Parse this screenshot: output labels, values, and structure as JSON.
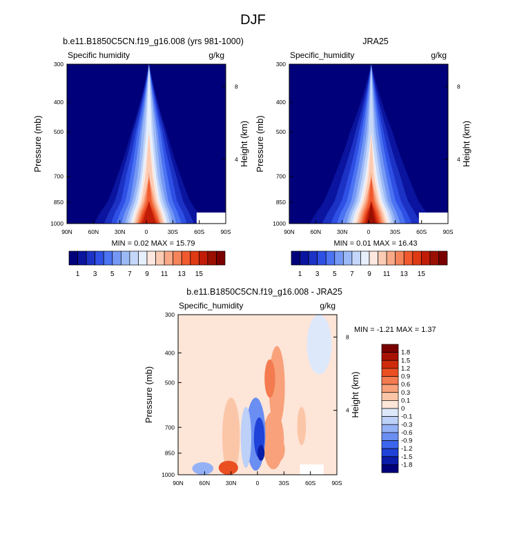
{
  "figure": {
    "title": "DJF"
  },
  "colors": {
    "abs_levels": [
      "#00007a",
      "#0a149e",
      "#1c32c4",
      "#2f50e4",
      "#4b73f2",
      "#7598f4",
      "#9bb9f6",
      "#c4d6f9",
      "#e6effc",
      "#fde7de",
      "#fbcbb4",
      "#f8a987",
      "#f5845b",
      "#f05a2e",
      "#de3a14",
      "#c01c08",
      "#991002",
      "#7a0000"
    ],
    "diff_levels": [
      "#00007a",
      "#0a1ca8",
      "#1f42d8",
      "#3d66ee",
      "#6a8ef2",
      "#95b1f5",
      "#bcd0f8",
      "#dde8fb",
      "#fde5d8",
      "#fbc6a8",
      "#f8a17a",
      "#f47a4f",
      "#ea4f22",
      "#cf2a0c",
      "#a81202",
      "#7a0000"
    ],
    "background_abs": "#00007a",
    "background_diff": "#fde5d8"
  },
  "charts": [
    {
      "left_title": "b.e11.B1850C5CN.f19_g16.008 (yrs 981-1000)",
      "variable": "Specific humidity",
      "units": "g/kg",
      "ylabel": "Pressure (mb)",
      "ylabel_right": "Height (km)",
      "xticks": [
        "90N",
        "60N",
        "30N",
        "0",
        "30S",
        "60S",
        "90S"
      ],
      "yticks": [
        "300",
        "400",
        "500",
        "700",
        "850",
        "1000"
      ],
      "height_ticks": [
        "8",
        "4"
      ],
      "minmax": "MIN =   0.02   MAX =   15.79",
      "colorbar_labels": [
        "1",
        "3",
        "5",
        "7",
        "9",
        "11",
        "13",
        "15"
      ]
    },
    {
      "left_title": "JRA25",
      "variable": "Specific_humidity",
      "units": "g/kg",
      "ylabel": "Pressure (mb)",
      "ylabel_right": "Height (km)",
      "xticks": [
        "90N",
        "60N",
        "30N",
        "0",
        "30S",
        "60S",
        "90S"
      ],
      "yticks": [
        "300",
        "400",
        "500",
        "700",
        "850",
        "1000"
      ],
      "height_ticks": [
        "8",
        "4"
      ],
      "minmax": "MIN =   0.01   MAX =   16.43",
      "colorbar_labels": [
        "1",
        "3",
        "5",
        "7",
        "9",
        "11",
        "13",
        "15"
      ]
    },
    {
      "left_title": "b.e11.B1850C5CN.f19_g16.008 - JRA25",
      "variable": "Specific_humidity",
      "units": "g/kg",
      "ylabel": "Pressure (mb)",
      "ylabel_right": "Height (km)",
      "xticks": [
        "90N",
        "60N",
        "30N",
        "0",
        "30S",
        "60S",
        "90S"
      ],
      "yticks": [
        "300",
        "400",
        "500",
        "700",
        "850",
        "1000"
      ],
      "height_ticks": [
        "8",
        "4"
      ],
      "minmax": "MIN =  -1.21   MAX =   1.37",
      "colorbar_labels": [
        "1.8",
        "1.5",
        "1.2",
        "0.9",
        "0.6",
        "0.3",
        "0.1",
        "0",
        "-0.1",
        "-0.3",
        "-0.6",
        "-0.9",
        "-1.2",
        "-1.5",
        "-1.8"
      ]
    }
  ],
  "chart_data": [
    {
      "type": "heatmap",
      "title": "b.e11.B1850C5CN.f19_g16.008 (yrs 981-1000)",
      "xlabel": "",
      "ylabel": "Pressure (mb)",
      "x_ticks": [
        "90N",
        "60N",
        "30N",
        "0",
        "30S",
        "60S",
        "90S"
      ],
      "y_ticks": [
        300,
        400,
        500,
        700,
        850,
        1000
      ],
      "y_scale": "log",
      "levels": [
        1,
        2,
        3,
        4,
        5,
        6,
        7,
        8,
        9,
        10,
        11,
        12,
        13,
        14,
        15,
        16,
        17
      ],
      "contours": [
        {
          "level": 1,
          "hw": [
            62,
            56,
            47,
            36,
            20,
            0
          ]
        },
        {
          "level": 2,
          "hw": [
            51,
            46,
            39,
            31,
            18,
            0
          ]
        },
        {
          "level": 3,
          "hw": [
            43,
            39,
            32,
            26,
            15,
            0
          ]
        },
        {
          "level": 4,
          "hw": [
            37,
            33,
            27,
            21,
            13,
            0
          ]
        },
        {
          "level": 5,
          "hw": [
            31,
            28,
            22,
            17,
            10,
            0
          ]
        },
        {
          "level": 6,
          "hw": [
            27,
            24,
            19,
            13,
            8,
            0
          ]
        },
        {
          "level": 7,
          "hw": [
            24,
            21,
            16,
            10,
            5,
            0
          ]
        },
        {
          "level": 8,
          "hw": [
            21,
            18,
            13,
            8,
            3,
            0
          ]
        },
        {
          "level": 9,
          "hw": [
            19,
            16,
            11,
            6,
            0,
            0
          ]
        },
        {
          "level": 10,
          "hw": [
            17,
            14,
            9,
            4,
            0,
            0
          ]
        },
        {
          "level": 11,
          "hw": [
            15,
            12,
            7,
            0,
            0,
            0
          ]
        },
        {
          "level": 12,
          "hw": [
            13,
            10,
            5,
            0,
            0,
            0
          ]
        },
        {
          "level": 13,
          "hw": [
            12,
            8,
            3,
            0,
            0,
            0
          ]
        },
        {
          "level": 14,
          "hw": [
            10,
            6,
            0,
            0,
            0,
            0
          ]
        },
        {
          "level": 15,
          "hw": [
            8,
            4,
            0,
            0,
            0,
            0
          ]
        }
      ],
      "center_lat": -3,
      "hw_pressures": [
        1000,
        925,
        850,
        700,
        500,
        300
      ],
      "min": 0.02,
      "max": 15.79
    },
    {
      "type": "heatmap",
      "title": "JRA25",
      "xlabel": "",
      "ylabel": "Pressure (mb)",
      "x_ticks": [
        "90N",
        "60N",
        "30N",
        "0",
        "30S",
        "60S",
        "90S"
      ],
      "y_ticks": [
        300,
        400,
        500,
        700,
        850,
        1000
      ],
      "y_scale": "log",
      "levels": [
        1,
        2,
        3,
        4,
        5,
        6,
        7,
        8,
        9,
        10,
        11,
        12,
        13,
        14,
        15,
        16,
        17
      ],
      "contours": [
        {
          "level": 1,
          "hw": [
            70,
            63,
            54,
            42,
            24,
            0
          ]
        },
        {
          "level": 2,
          "hw": [
            56,
            50,
            42,
            33,
            18,
            0
          ]
        },
        {
          "level": 3,
          "hw": [
            46,
            41,
            34,
            26,
            14,
            0
          ]
        },
        {
          "level": 4,
          "hw": [
            39,
            35,
            28,
            21,
            11,
            0
          ]
        },
        {
          "level": 5,
          "hw": [
            33,
            29,
            23,
            17,
            8,
            0
          ]
        },
        {
          "level": 6,
          "hw": [
            28,
            25,
            19,
            13,
            5,
            0
          ]
        },
        {
          "level": 7,
          "hw": [
            25,
            22,
            16,
            10,
            3,
            0
          ]
        },
        {
          "level": 8,
          "hw": [
            22,
            19,
            13,
            7,
            0,
            0
          ]
        },
        {
          "level": 9,
          "hw": [
            20,
            17,
            11,
            5,
            0,
            0
          ]
        },
        {
          "level": 10,
          "hw": [
            17,
            14,
            9,
            3,
            0,
            0
          ]
        },
        {
          "level": 11,
          "hw": [
            15,
            12,
            7,
            0,
            0,
            0
          ]
        },
        {
          "level": 12,
          "hw": [
            13,
            10,
            5,
            0,
            0,
            0
          ]
        },
        {
          "level": 13,
          "hw": [
            11,
            8,
            3,
            0,
            0,
            0
          ]
        },
        {
          "level": 14,
          "hw": [
            9,
            6,
            0,
            0,
            0,
            0
          ]
        },
        {
          "level": 15,
          "hw": [
            7,
            4,
            0,
            0,
            0,
            0
          ]
        },
        {
          "level": 16,
          "hw": [
            5,
            2,
            0,
            0,
            0,
            0
          ]
        }
      ],
      "center_lat": -3,
      "hw_pressures": [
        1000,
        925,
        850,
        700,
        500,
        300
      ],
      "min": 0.01,
      "max": 16.43
    },
    {
      "type": "heatmap",
      "title": "b.e11.B1850C5CN.f19_g16.008 - JRA25",
      "xlabel": "",
      "ylabel": "Pressure (mb)",
      "x_ticks": [
        "90N",
        "60N",
        "30N",
        "0",
        "30S",
        "60S",
        "90S"
      ],
      "y_ticks": [
        300,
        400,
        500,
        700,
        850,
        1000
      ],
      "y_scale": "log",
      "levels": [
        -1.8,
        -1.5,
        -1.2,
        -0.9,
        -0.6,
        -0.3,
        -0.1,
        0,
        0.1,
        0.3,
        0.6,
        0.9,
        1.2,
        1.5,
        1.8
      ],
      "features": [
        {
          "lat": -22,
          "p": 500,
          "lat_radius": 9,
          "p_span": [
            380,
            700
          ],
          "value": 0.4
        },
        {
          "lat": -14,
          "p": 470,
          "lat_radius": 6,
          "p_span": [
            420,
            560
          ],
          "value": 0.7
        },
        {
          "lat": 30,
          "p": 780,
          "lat_radius": 10,
          "p_span": [
            560,
            1000
          ],
          "value": 0.3
        },
        {
          "lat": -18,
          "p": 820,
          "lat_radius": 12,
          "p_span": [
            620,
            960
          ],
          "value": 0.4
        },
        {
          "lat": -25,
          "p": 840,
          "lat_radius": 6,
          "p_span": [
            760,
            900
          ],
          "value": 0.6
        },
        {
          "lat": -50,
          "p": 700,
          "lat_radius": 5,
          "p_span": [
            600,
            800
          ],
          "value": 0.2
        },
        {
          "lat": 33,
          "p": 960,
          "lat_radius": 11,
          "p_span": [
            900,
            1000
          ],
          "value": 1.2
        },
        {
          "lat": 2,
          "p": 780,
          "lat_radius": 11,
          "p_span": [
            560,
            970
          ],
          "value": -0.6
        },
        {
          "lat": -2,
          "p": 800,
          "lat_radius": 6,
          "p_span": [
            650,
            880
          ],
          "value": -1.2
        },
        {
          "lat": -4,
          "p": 860,
          "lat_radius": 4,
          "p_span": [
            800,
            900
          ],
          "value": -1.6
        },
        {
          "lat": 13,
          "p": 760,
          "lat_radius": 6,
          "p_span": [
            600,
            950
          ],
          "value": -0.25
        },
        {
          "lat": 62,
          "p": 960,
          "lat_radius": 12,
          "p_span": [
            910,
            1000
          ],
          "value": -0.4
        },
        {
          "lat": -70,
          "p": 380,
          "lat_radius": 14,
          "p_span": [
            300,
            470
          ],
          "value": -0.05
        }
      ],
      "min": -1.21,
      "max": 1.37
    }
  ]
}
